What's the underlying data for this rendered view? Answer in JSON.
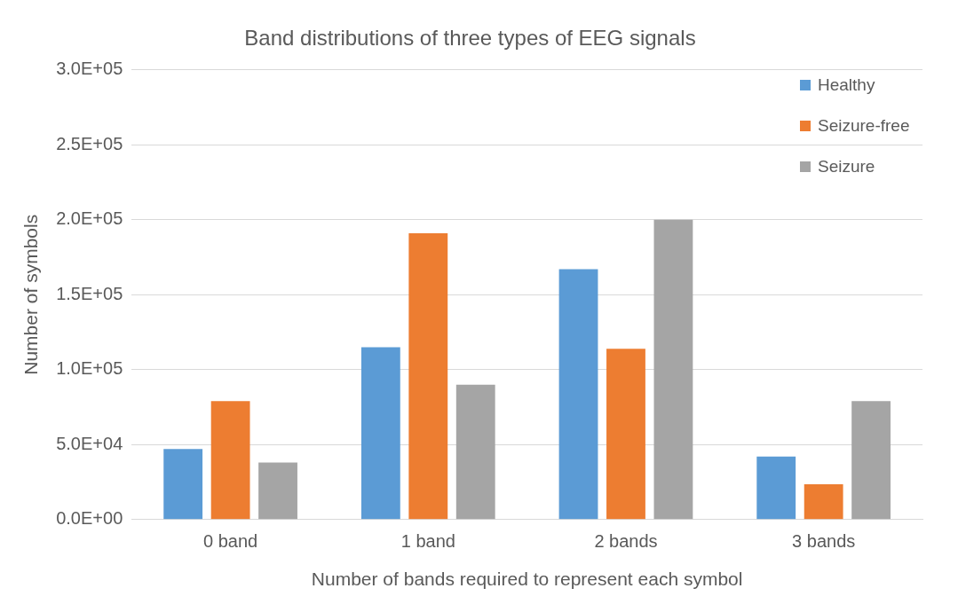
{
  "chart_data": {
    "type": "bar",
    "title": "Band distributions of three types of EEG signals",
    "xlabel": "Number of bands required to represent each symbol",
    "ylabel": "Number of symbols",
    "categories": [
      "0 band",
      "1 band",
      "2 bands",
      "3 bands"
    ],
    "series": [
      {
        "name": "Healthy",
        "color": "#5b9bd5",
        "values": [
          47000,
          115000,
          167000,
          42000
        ]
      },
      {
        "name": "Seizure-free",
        "color": "#ed7d31",
        "values": [
          79000,
          191000,
          114000,
          23500
        ]
      },
      {
        "name": "Seizure",
        "color": "#a5a5a5",
        "values": [
          38000,
          90000,
          200000,
          79000
        ]
      }
    ],
    "ylim": [
      0,
      300000
    ],
    "yticks": [
      {
        "value": 0,
        "label": "0.0E+00"
      },
      {
        "value": 50000,
        "label": "5.0E+04"
      },
      {
        "value": 100000,
        "label": "1.0E+05"
      },
      {
        "value": 150000,
        "label": "1.5E+05"
      },
      {
        "value": 200000,
        "label": "2.0E+05"
      },
      {
        "value": 250000,
        "label": "2.5E+05"
      },
      {
        "value": 300000,
        "label": "3.0E+05"
      }
    ],
    "grid": "y",
    "legend": "top right"
  }
}
